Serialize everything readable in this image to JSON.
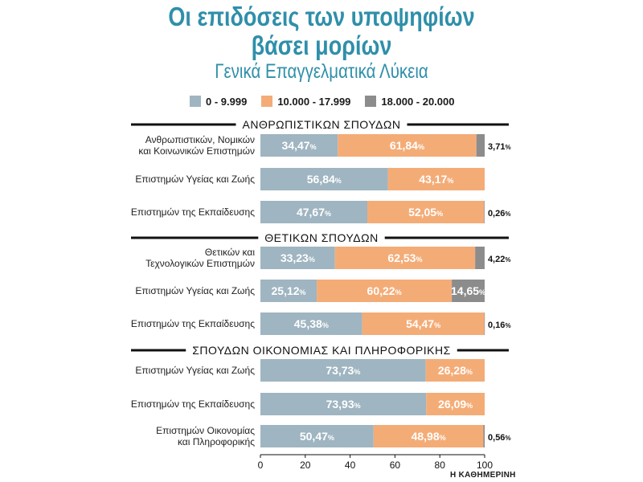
{
  "title_line1": "Οι επιδόσεις των υποψηφίων",
  "title_line2": "βάσει μορίων",
  "subtitle": "Γενικά Επαγγελματικά Λύκεια",
  "credit": "Η ΚΑΘΗΜΕΡΙΝΗ",
  "colors": {
    "low": "#9fb5c1",
    "mid": "#f4ac77",
    "high": "#8c8c8c",
    "title": "#2f8faa"
  },
  "chart_data": {
    "type": "bar",
    "orientation": "horizontal",
    "stacked": true,
    "title": "Οι επιδόσεις των υποψηφίων βάσει μορίων",
    "subtitle": "Γενικά Επαγγελματικά Λύκεια",
    "series_names": [
      "0 - 9.999",
      "10.000 - 17.999",
      "18.000 - 20.000"
    ],
    "xlim": [
      0,
      100
    ],
    "xticks": [
      "0",
      "20",
      "40",
      "60",
      "80",
      "100"
    ],
    "groups": [
      {
        "name": "ΑΝΘΡΩΠΙΣΤΙΚΩΝ ΣΠΟΥΔΩΝ",
        "rows": [
          {
            "label": [
              "Ανθρωπιστικών, Νομικών",
              "και Κοινωνικών Επιστημών"
            ],
            "values": [
              34.47,
              61.84,
              3.71
            ],
            "texts": [
              "34,47",
              "61,84",
              "3,71"
            ]
          },
          {
            "label": [
              "Επιστημών Υγείας και Ζωής"
            ],
            "values": [
              56.84,
              43.17,
              0
            ],
            "texts": [
              "56,84",
              "43,17",
              ""
            ]
          },
          {
            "label": [
              "Επιστημών της Εκπαίδευσης"
            ],
            "values": [
              47.67,
              52.05,
              0.26
            ],
            "texts": [
              "47,67",
              "52,05",
              "0,26"
            ]
          }
        ]
      },
      {
        "name": "ΘΕΤΙΚΩΝ ΣΠΟΥΔΩΝ",
        "rows": [
          {
            "label": [
              "Θετικών και",
              "Τεχνολογικών Επιστημών"
            ],
            "values": [
              33.23,
              62.53,
              4.22
            ],
            "texts": [
              "33,23",
              "62,53",
              "4,22"
            ]
          },
          {
            "label": [
              "Επιστημών Υγείας και Ζωής"
            ],
            "values": [
              25.12,
              60.22,
              14.65
            ],
            "texts": [
              "25,12",
              "60,22",
              "14,65"
            ]
          },
          {
            "label": [
              "Επιστημών της Εκπαίδευσης"
            ],
            "values": [
              45.38,
              54.47,
              0.16
            ],
            "texts": [
              "45,38",
              "54,47",
              "0,16"
            ]
          }
        ]
      },
      {
        "name": "ΣΠΟΥΔΩΝ ΟΙΚΟΝΟΜΙΑΣ ΚΑΙ ΠΛΗΡΟΦΟΡΙΚΗΣ",
        "rows": [
          {
            "label": [
              "Επιστημών Υγείας και Ζωής"
            ],
            "values": [
              73.73,
              26.28,
              0
            ],
            "texts": [
              "73,73",
              "26,28",
              ""
            ]
          },
          {
            "label": [
              "Επιστημών της Εκπαίδευσης"
            ],
            "values": [
              73.93,
              26.09,
              0
            ],
            "texts": [
              "73,93",
              "26,09",
              ""
            ]
          },
          {
            "label": [
              "Επιστημών Οικονομίας",
              "και Πληροφορικής"
            ],
            "values": [
              50.47,
              48.98,
              0.56
            ],
            "texts": [
              "50,47",
              "48,98",
              "0,56"
            ]
          }
        ]
      }
    ]
  }
}
